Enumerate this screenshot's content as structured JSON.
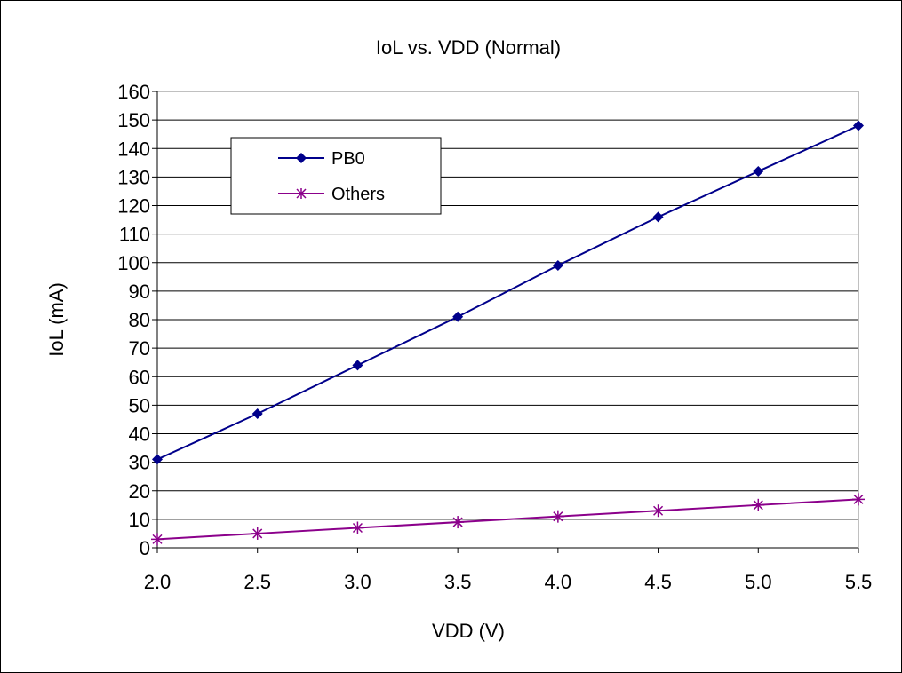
{
  "chart_data": {
    "type": "line",
    "title": "IoL vs. VDD (Normal)",
    "xlabel": "VDD (V)",
    "ylabel": "IoL (mA)",
    "x": [
      2.0,
      2.5,
      3.0,
      3.5,
      4.0,
      4.5,
      5.0,
      5.5
    ],
    "x_tick_labels": [
      "2.0",
      "2.5",
      "3.0",
      "3.5",
      "4.0",
      "4.5",
      "5.0",
      "5.5"
    ],
    "xlim": [
      2.0,
      5.5
    ],
    "ylim": [
      0,
      160
    ],
    "y_ticks": [
      0,
      10,
      20,
      30,
      40,
      50,
      60,
      70,
      80,
      90,
      100,
      110,
      120,
      130,
      140,
      150,
      160
    ],
    "grid": "horizontal",
    "legend_position": "top-left",
    "series": [
      {
        "name": "PB0",
        "color": "#00008B",
        "marker": "diamond",
        "values": [
          31,
          47,
          64,
          81,
          99,
          116,
          132,
          148
        ]
      },
      {
        "name": "Others",
        "color": "#8B008B",
        "marker": "asterisk",
        "values": [
          3,
          5,
          7,
          9,
          11,
          13,
          15,
          17
        ]
      }
    ]
  }
}
